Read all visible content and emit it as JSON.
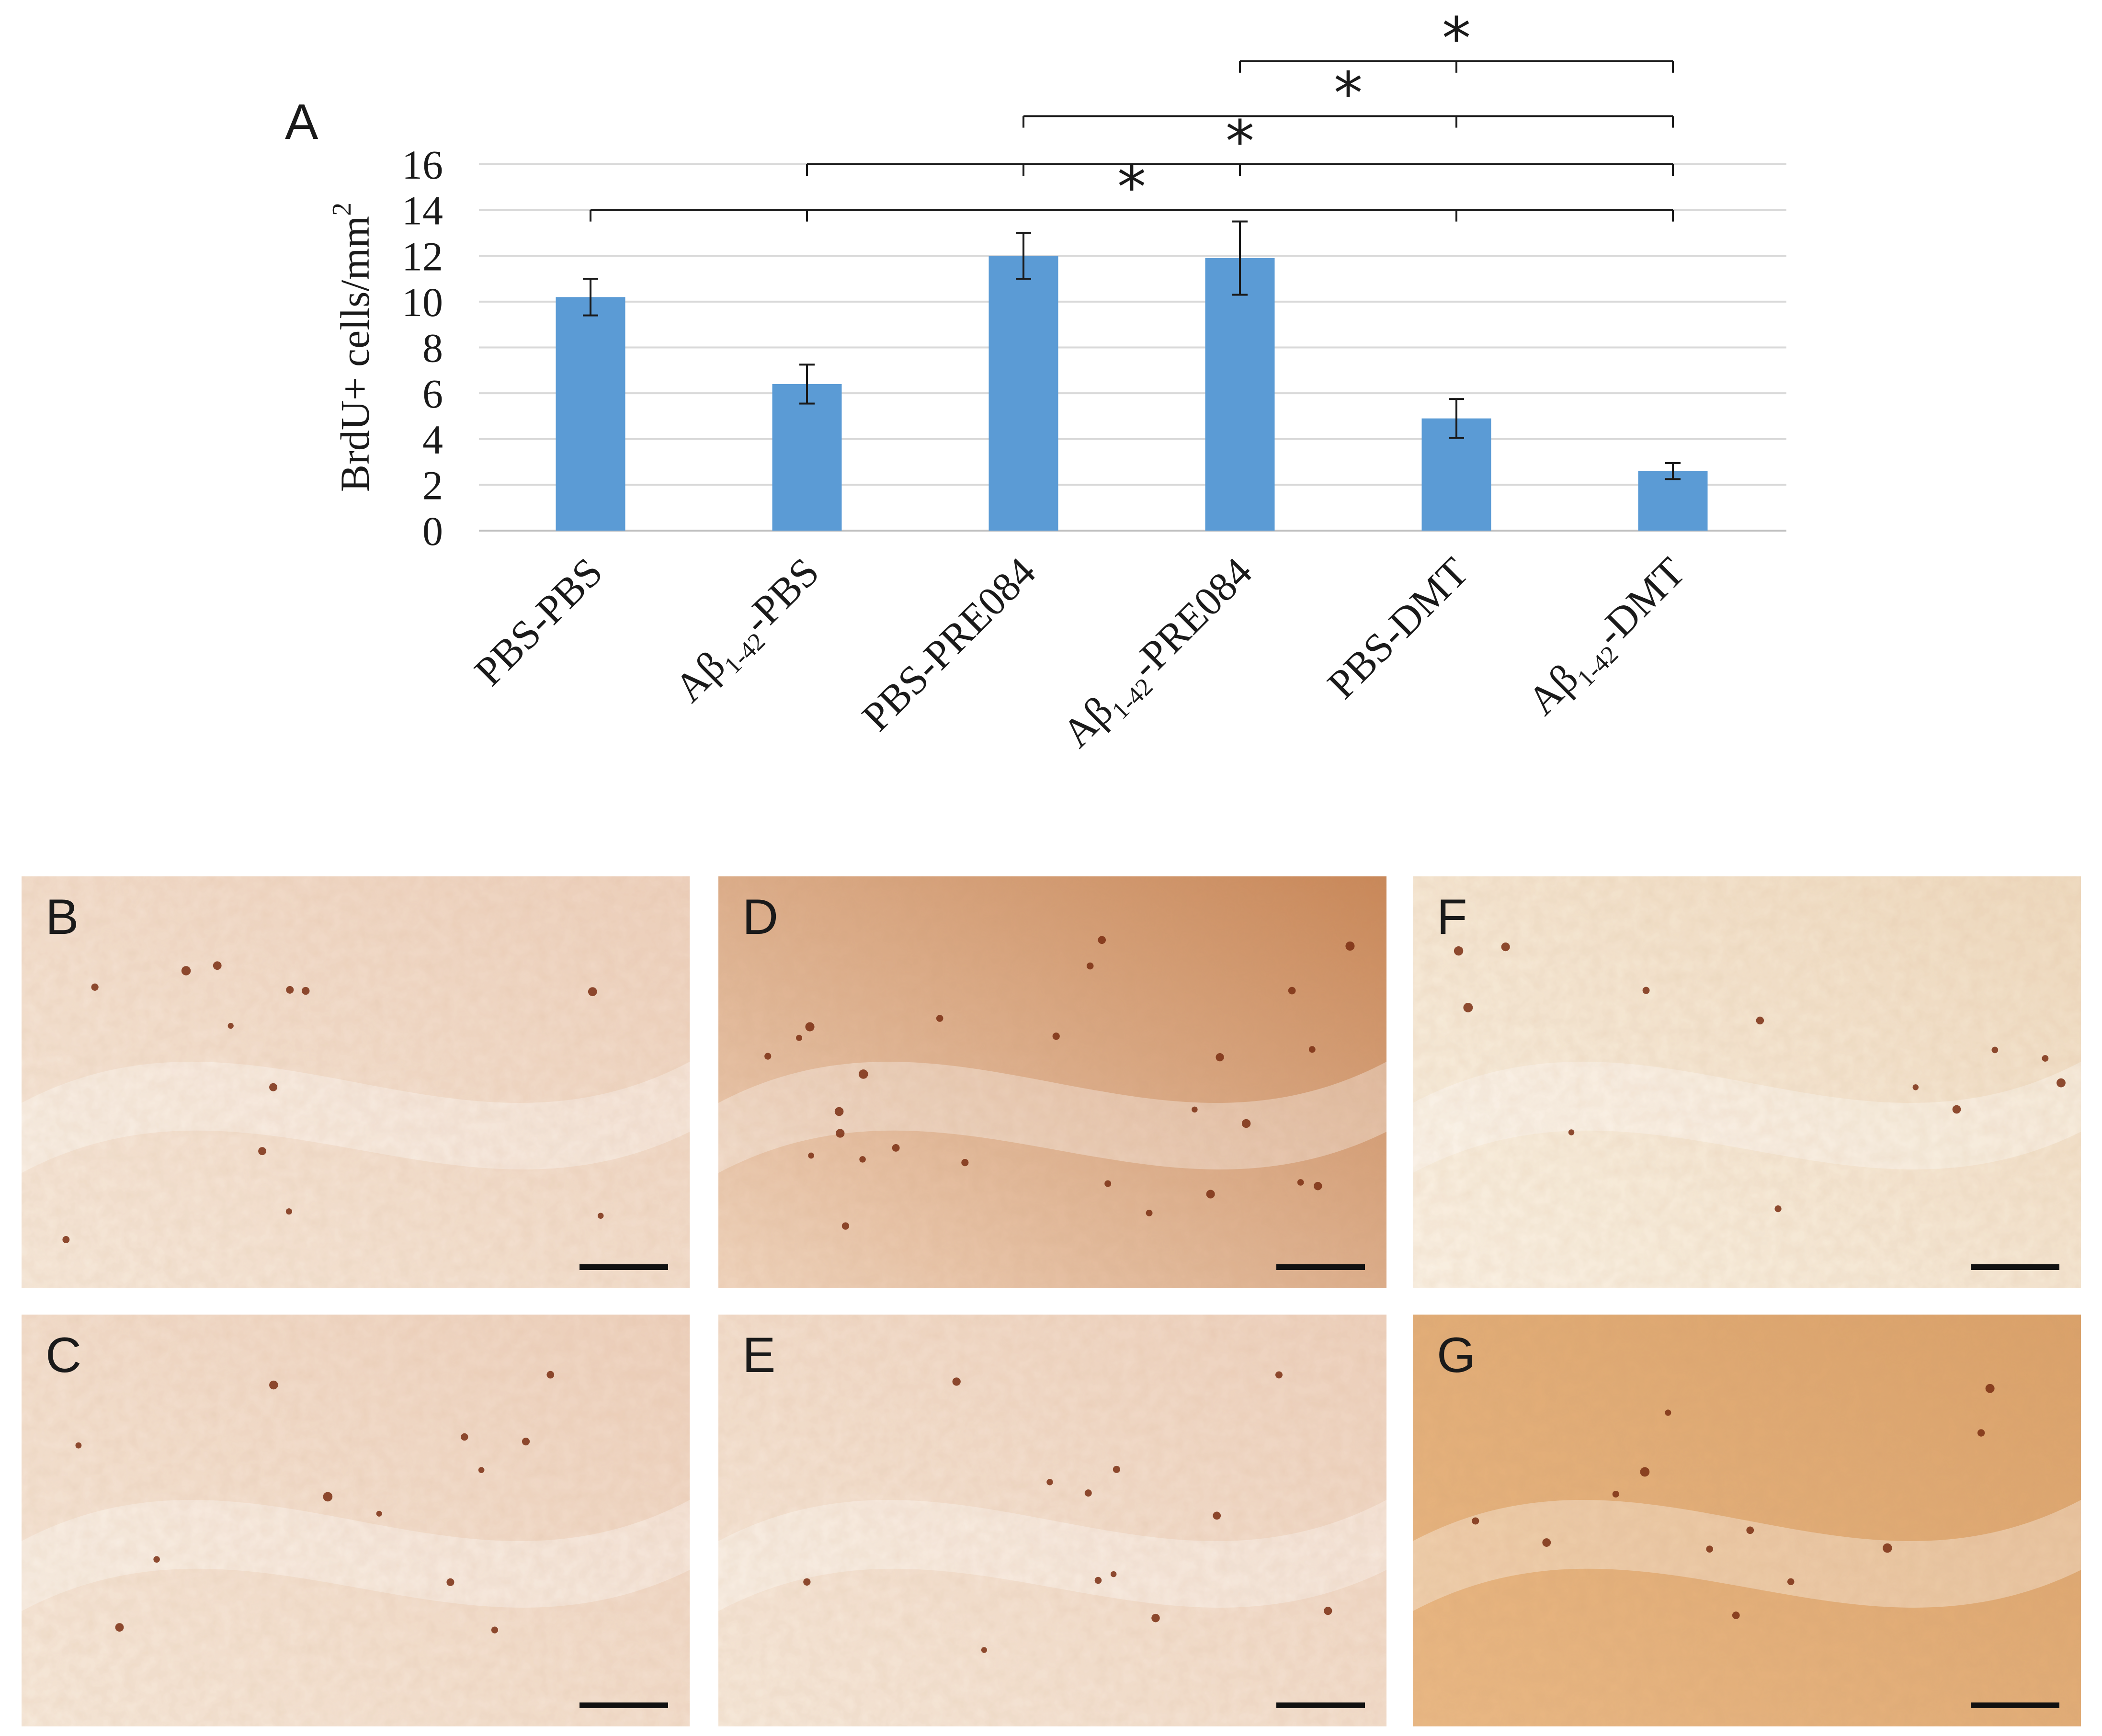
{
  "panels": {
    "chart": "A",
    "micrographs": [
      "B",
      "C",
      "D",
      "E",
      "F",
      "G"
    ]
  },
  "chart_data": {
    "type": "bar",
    "ylabel": "BrdU+ cells/mm",
    "ylabel_sup": "2",
    "ylim": [
      0,
      16
    ],
    "yticks": [
      0,
      2,
      4,
      6,
      8,
      10,
      12,
      14,
      16
    ],
    "grid": true,
    "categories": [
      "PBS-PBS",
      "Aβ1-42-PBS",
      "PBS-PRE084",
      "Aβ1-42-PRE084",
      "PBS-DMT",
      "Aβ1-42-DMT"
    ],
    "category_labels": [
      {
        "main": "PBS-PBS"
      },
      {
        "pre": "Aβ",
        "sub": "1-42",
        "post": "-PBS"
      },
      {
        "main": "PBS-PRE084"
      },
      {
        "pre": "Aβ",
        "sub": "1-42",
        "post": "-PRE084"
      },
      {
        "main": "PBS-DMT"
      },
      {
        "pre": "Aβ",
        "sub": "1-42",
        "post": "-DMT"
      }
    ],
    "values": [
      10.2,
      6.4,
      12.0,
      11.9,
      4.9,
      2.6
    ],
    "errors": [
      0.8,
      0.85,
      1.0,
      1.6,
      0.85,
      0.35
    ],
    "bar_color": "#5b9bd5",
    "significance": [
      {
        "from": 0,
        "to": 5,
        "ticks": [
          0,
          1,
          4,
          5
        ],
        "level": 14,
        "label": "*"
      },
      {
        "from": 1,
        "to": 5,
        "ticks": [
          1,
          2,
          3,
          5
        ],
        "level": 16,
        "label": "*"
      },
      {
        "from": 2,
        "to": 5,
        "ticks": [
          2,
          4,
          5
        ],
        "level": 18.1,
        "label": "*"
      },
      {
        "from": 3,
        "to": 5,
        "ticks": [
          3,
          4,
          5
        ],
        "level": 20.5,
        "label": "*"
      }
    ]
  },
  "micrographs": [
    {
      "label": "B",
      "tone": "light-pink"
    },
    {
      "label": "C",
      "tone": "light-pink"
    },
    {
      "label": "D",
      "tone": "dark-brown"
    },
    {
      "label": "E",
      "tone": "light-pink"
    },
    {
      "label": "F",
      "tone": "pale-cream"
    },
    {
      "label": "G",
      "tone": "tan"
    }
  ]
}
